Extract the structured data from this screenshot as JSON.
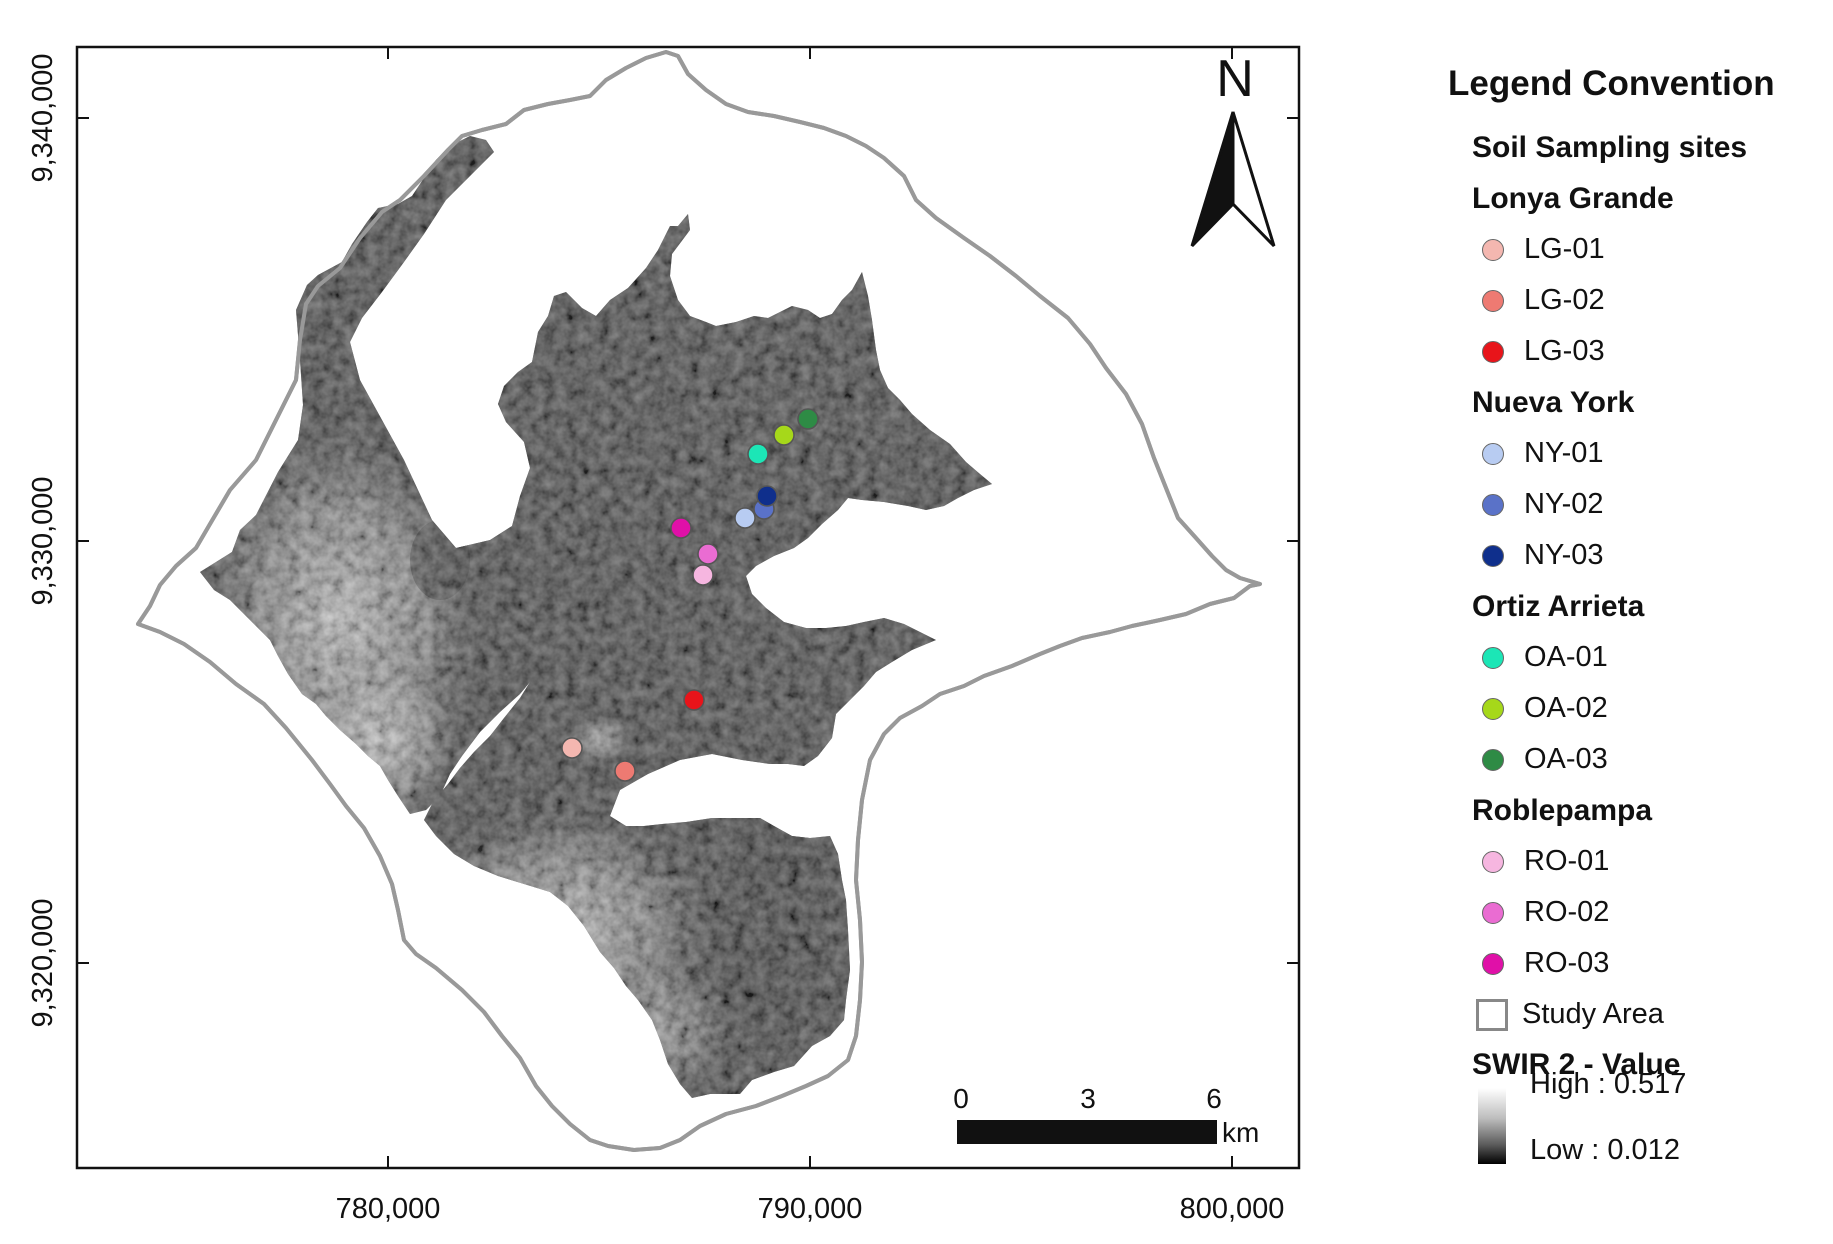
{
  "map": {
    "axes": {
      "x_ticks": [
        "780,000",
        "790,000",
        "800,000"
      ],
      "y_ticks": [
        "9,340,000",
        "9,330,000",
        "9,320,000"
      ]
    },
    "north_label": "N",
    "scale_bar": {
      "labels": [
        "0",
        "3",
        "6"
      ],
      "unit": "km"
    }
  },
  "legend": {
    "title": "Legend Convention",
    "subtitle": "Soil Sampling sites",
    "groups": [
      {
        "name": "Lonya Grande",
        "sites": [
          {
            "label": "LG-01",
            "color": "#f4b7b0"
          },
          {
            "label": "LG-02",
            "color": "#ee7a72"
          },
          {
            "label": "LG-03",
            "color": "#e8141a"
          }
        ]
      },
      {
        "name": "Nueva York",
        "sites": [
          {
            "label": "NY-01",
            "color": "#b8ccf2"
          },
          {
            "label": "NY-02",
            "color": "#5a72c8"
          },
          {
            "label": "NY-03",
            "color": "#0f2f8c"
          }
        ]
      },
      {
        "name": "Ortiz Arrieta",
        "sites": [
          {
            "label": "OA-01",
            "color": "#1ce6b6"
          },
          {
            "label": "OA-02",
            "color": "#a6d81a"
          },
          {
            "label": "OA-03",
            "color": "#2e8b45"
          }
        ]
      },
      {
        "name": "Roblepampa",
        "sites": [
          {
            "label": "RO-01",
            "color": "#f6b6e0"
          },
          {
            "label": "RO-02",
            "color": "#ea6cd2"
          },
          {
            "label": "RO-03",
            "color": "#e010a8"
          }
        ]
      }
    ],
    "study_area_label": "Study Area",
    "raster_title": "SWIR 2 - Value",
    "raster_high": "High : 0.517",
    "raster_low": "Low : 0.012"
  }
}
